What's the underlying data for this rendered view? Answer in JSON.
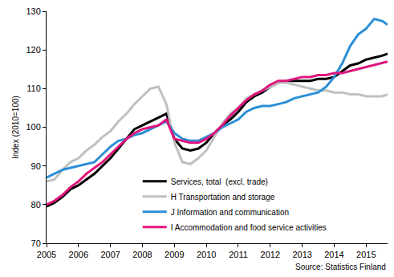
{
  "chart_data": {
    "type": "line",
    "y_label": "Index (2010=100)",
    "annotations": [
      "Source: Statistics Finland"
    ],
    "x": [
      2005,
      2005.25,
      2005.5,
      2005.75,
      2006,
      2006.25,
      2006.5,
      2006.75,
      2007,
      2007.25,
      2007.5,
      2007.75,
      2008,
      2008.25,
      2008.5,
      2008.75,
      2009,
      2009.25,
      2009.5,
      2009.75,
      2010,
      2010.25,
      2010.5,
      2010.75,
      2011,
      2011.25,
      2011.5,
      2011.75,
      2012,
      2012.25,
      2012.5,
      2012.75,
      2013,
      2013.25,
      2013.5,
      2013.75,
      2014,
      2014.25,
      2014.5,
      2014.75,
      2015,
      2015.25,
      2015.5,
      2015.67
    ],
    "series": [
      {
        "name": "Services, total  (excl. trade)",
        "color": "#000000",
        "values": [
          79.5,
          80.5,
          82,
          84,
          85,
          86.5,
          88,
          90,
          92,
          94.5,
          97,
          99.5,
          100.5,
          101.5,
          102.5,
          103.5,
          97,
          94.5,
          94,
          94.5,
          96,
          98.5,
          100.5,
          102,
          104,
          106.5,
          108,
          109,
          110.5,
          111.5,
          112,
          112,
          112,
          112,
          112.5,
          112.5,
          113,
          114.5,
          116,
          116.5,
          117.5,
          118,
          118.5,
          119
        ]
      },
      {
        "name": "H Transportation and storage",
        "color": "#c0c0c0",
        "values": [
          86,
          86.5,
          89,
          91,
          92,
          94,
          95.5,
          97.5,
          99,
          101.5,
          103.5,
          106,
          108,
          110,
          110.5,
          106,
          96,
          91,
          90.5,
          92,
          94,
          97.5,
          101,
          103.5,
          105,
          107.5,
          108.5,
          109.5,
          110.5,
          111.5,
          111.5,
          111,
          110.5,
          110,
          109.5,
          109.5,
          109,
          109,
          108.5,
          108.5,
          108,
          108,
          108,
          108.5
        ]
      },
      {
        "name": "J Information and communication",
        "color": "#2b8fd6",
        "values": [
          87,
          88,
          89,
          89.5,
          90,
          90.5,
          91,
          93,
          95,
          96.5,
          97,
          98,
          98.5,
          99.5,
          100.5,
          101.5,
          98.5,
          97,
          96.5,
          96.5,
          97.5,
          98.5,
          100,
          101,
          102,
          104,
          105,
          105.5,
          105.5,
          106,
          106.5,
          107.5,
          108,
          108.5,
          109,
          110.5,
          113,
          116.5,
          121,
          124,
          125.5,
          128,
          127.5,
          126.5
        ]
      },
      {
        "name": "I Accommodation and food service activities",
        "color": "#e0147c",
        "values": [
          80,
          81,
          82.5,
          84.5,
          86,
          88,
          89.5,
          91,
          93,
          95,
          97,
          98.5,
          99.5,
          100,
          100.5,
          102,
          97,
          96.5,
          96,
          96,
          97,
          98.5,
          100.5,
          103,
          105,
          107,
          108.5,
          109.5,
          111,
          112,
          112,
          112.5,
          113,
          113,
          113.5,
          113.5,
          114,
          114,
          114.5,
          115,
          115.5,
          116,
          116.5,
          117
        ]
      }
    ],
    "xlim": [
      2005,
      2015.67
    ],
    "xticks": [
      2005,
      2006,
      2007,
      2008,
      2009,
      2010,
      2011,
      2012,
      2013,
      2014,
      2015
    ],
    "ylim": [
      70,
      130
    ],
    "yticks": [
      70,
      80,
      90,
      100,
      110,
      120,
      130
    ],
    "grid": false,
    "legend": "bottom"
  }
}
